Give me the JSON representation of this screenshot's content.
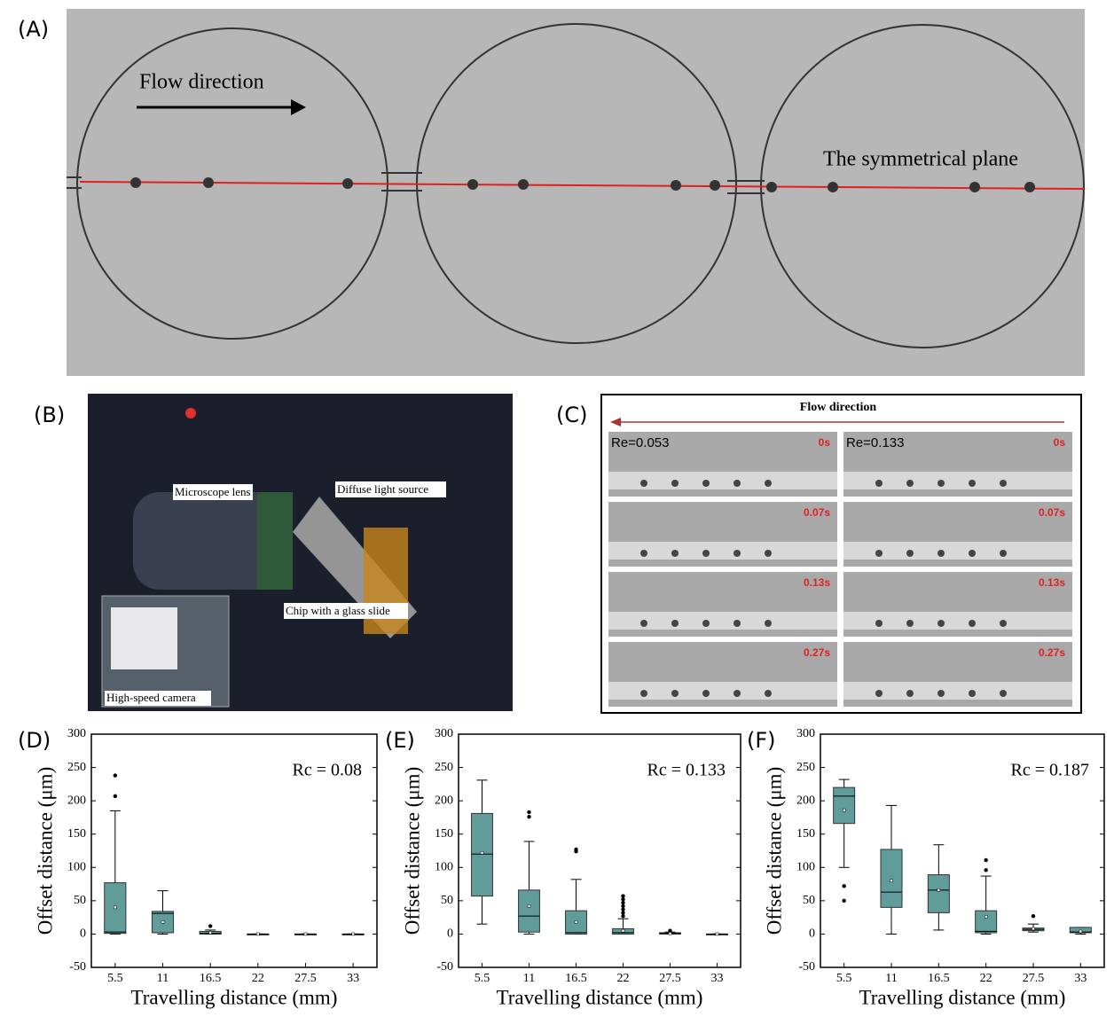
{
  "panels": {
    "a": {
      "label": "(A)",
      "flow": "Flow direction",
      "plane": "The symmetrical plane"
    },
    "b": {
      "label": "(B)",
      "lens": "Microscope lens",
      "light": "Diffuse light source",
      "chip": "Chip with a glass slide",
      "camera": "High-speed camera"
    },
    "c": {
      "label": "(C)",
      "flow": "Flow direction",
      "re": [
        "Re=0.053",
        "Re=0.133"
      ],
      "times": [
        "0s",
        "0.07s",
        "0.13s",
        "0.27s"
      ]
    }
  },
  "chart_data": [
    {
      "type": "box",
      "label": "(D)",
      "annotation": "Rc = 0.08",
      "ylabel": "Offset distance (μm)",
      "xlabel": "Travelling distance (mm)",
      "color": "#5f9c9a",
      "categories": [
        "5.5",
        "11",
        "16.5",
        "22",
        "27.5",
        "33"
      ],
      "boxes": [
        {
          "min": 0,
          "q1": 1,
          "median": 3,
          "q3": 77,
          "max": 185,
          "mean": 40,
          "outliers": [
            207,
            238
          ]
        },
        {
          "min": 0,
          "q1": 2,
          "median": 31,
          "q3": 34,
          "max": 65,
          "mean": 18,
          "outliers": []
        },
        {
          "min": 0,
          "q1": 0,
          "median": 1,
          "q3": 4,
          "max": 6,
          "mean": 2,
          "outliers": [
            12
          ]
        },
        {
          "min": 0,
          "q1": 0,
          "median": 0,
          "q3": 0,
          "max": 0,
          "mean": 0,
          "outliers": []
        },
        {
          "min": 0,
          "q1": 0,
          "median": 0,
          "q3": 0,
          "max": 0,
          "mean": 0,
          "outliers": []
        },
        {
          "min": 0,
          "q1": 0,
          "median": 0,
          "q3": 0,
          "max": 0,
          "mean": 0,
          "outliers": []
        }
      ],
      "ylim": [
        -50,
        300
      ],
      "yticks": [
        -50,
        0,
        50,
        100,
        150,
        200,
        250,
        300
      ]
    },
    {
      "type": "box",
      "label": "(E)",
      "annotation": "Rc = 0.133",
      "ylabel": "Offset distance (μm)",
      "xlabel": "Travelling distance (mm)",
      "color": "#5f9c9a",
      "categories": [
        "5.5",
        "11",
        "16.5",
        "22",
        "27.5",
        "33"
      ],
      "boxes": [
        {
          "min": 15,
          "q1": 57,
          "median": 120,
          "q3": 181,
          "max": 231,
          "mean": 122,
          "outliers": []
        },
        {
          "min": 0,
          "q1": 3,
          "median": 27,
          "q3": 66,
          "max": 139,
          "mean": 42,
          "outliers": [
            176,
            183
          ]
        },
        {
          "min": 0,
          "q1": 0,
          "median": 2,
          "q3": 35,
          "max": 82,
          "mean": 18,
          "outliers": [
            124,
            127
          ]
        },
        {
          "min": 0,
          "q1": 0,
          "median": 2,
          "q3": 8,
          "max": 23,
          "mean": 5,
          "outliers": [
            27,
            32,
            37,
            42,
            47,
            52,
            57
          ]
        },
        {
          "min": 0,
          "q1": 0,
          "median": 1,
          "q3": 2,
          "max": 3,
          "mean": 1,
          "outliers": [
            5
          ]
        },
        {
          "min": 0,
          "q1": 0,
          "median": 0,
          "q3": 0,
          "max": 0,
          "mean": 0,
          "outliers": []
        }
      ],
      "ylim": [
        -50,
        300
      ],
      "yticks": [
        -50,
        0,
        50,
        100,
        150,
        200,
        250,
        300
      ]
    },
    {
      "type": "box",
      "label": "(F)",
      "annotation": "Rc = 0.187",
      "ylabel": "Offset distance (μm)",
      "xlabel": "Travelling distance (mm)",
      "color": "#5f9c9a",
      "categories": [
        "5.5",
        "11",
        "16.5",
        "22",
        "27.5",
        "33"
      ],
      "boxes": [
        {
          "min": 100,
          "q1": 166,
          "median": 207,
          "q3": 220,
          "max": 232,
          "mean": 186,
          "outliers": [
            72,
            50
          ]
        },
        {
          "min": 0,
          "q1": 40,
          "median": 63,
          "q3": 127,
          "max": 193,
          "mean": 80,
          "outliers": []
        },
        {
          "min": 6,
          "q1": 32,
          "median": 66,
          "q3": 89,
          "max": 134,
          "mean": 66,
          "outliers": []
        },
        {
          "min": 0,
          "q1": 2,
          "median": 4,
          "q3": 35,
          "max": 87,
          "mean": 26,
          "outliers": [
            96,
            111
          ]
        },
        {
          "min": 3,
          "q1": 5,
          "median": 7,
          "q3": 9,
          "max": 15,
          "mean": 8,
          "outliers": [
            27
          ]
        },
        {
          "min": 0,
          "q1": 2,
          "median": 3,
          "q3": 10,
          "max": 10,
          "mean": 4,
          "outliers": []
        }
      ],
      "ylim": [
        -50,
        300
      ],
      "yticks": [
        -50,
        0,
        50,
        100,
        150,
        200,
        250,
        300
      ]
    }
  ]
}
